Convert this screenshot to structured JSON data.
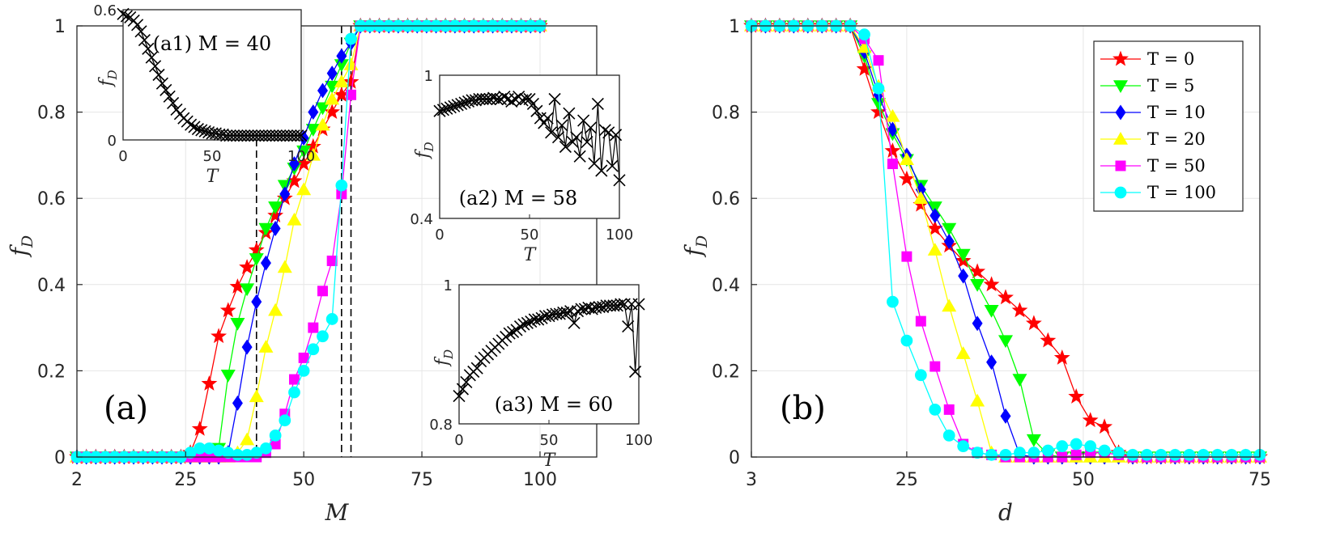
{
  "figure": {
    "panel_labels": [
      "(a)",
      "(b)"
    ],
    "legend_entries": [
      "T = 0",
      "T = 5",
      "T = 10",
      "T = 20",
      "T = 50",
      "T = 100"
    ]
  },
  "chart_data": [
    {
      "id": "a",
      "type": "line",
      "xlabel": "M",
      "ylabel": "f",
      "ylabel_sub": "D",
      "xlim": [
        2,
        112
      ],
      "ylim": [
        0,
        1
      ],
      "xticks": [
        2,
        25,
        50,
        75,
        100
      ],
      "yticks": [
        0,
        0.2,
        0.4,
        0.6,
        0.8,
        1
      ],
      "grid": true,
      "vlines": [
        40,
        58,
        60
      ],
      "x": [
        2,
        4,
        6,
        8,
        10,
        12,
        14,
        16,
        18,
        20,
        22,
        24,
        26,
        28,
        30,
        32,
        34,
        36,
        38,
        40,
        42,
        44,
        46,
        48,
        50,
        52,
        54,
        56,
        58,
        60,
        62,
        64,
        66,
        68,
        70,
        72,
        74,
        76,
        78,
        80,
        82,
        84,
        86,
        88,
        90,
        92,
        94,
        96,
        98,
        100
      ],
      "series": [
        {
          "name": "T = 0",
          "color": "#ff0000",
          "marker": "star",
          "values": [
            0,
            0,
            0,
            0,
            0,
            0,
            0,
            0,
            0,
            0,
            0,
            0,
            0.01,
            0.065,
            0.17,
            0.28,
            0.34,
            0.395,
            0.44,
            0.48,
            0.52,
            0.56,
            0.6,
            0.64,
            0.68,
            0.72,
            0.76,
            0.8,
            0.84,
            0.87,
            1,
            1,
            1,
            1,
            1,
            1,
            1,
            1,
            1,
            1,
            1,
            1,
            1,
            1,
            1,
            1,
            1,
            1,
            1,
            1
          ]
        },
        {
          "name": "T = 5",
          "color": "#00ff00",
          "marker": "triangle-down",
          "values": [
            0,
            0,
            0,
            0,
            0,
            0,
            0,
            0,
            0,
            0,
            0,
            0,
            0,
            0,
            0,
            0.02,
            0.19,
            0.31,
            0.39,
            0.46,
            0.53,
            0.58,
            0.63,
            0.67,
            0.71,
            0.76,
            0.81,
            0.86,
            0.91,
            0.96,
            1,
            1,
            1,
            1,
            1,
            1,
            1,
            1,
            1,
            1,
            1,
            1,
            1,
            1,
            1,
            1,
            1,
            1,
            1,
            1
          ]
        },
        {
          "name": "T = 10",
          "color": "#0000ff",
          "marker": "diamond",
          "values": [
            0,
            0,
            0,
            0,
            0,
            0,
            0,
            0,
            0,
            0,
            0,
            0,
            0,
            0,
            0,
            0,
            0.01,
            0.125,
            0.255,
            0.36,
            0.45,
            0.53,
            0.61,
            0.68,
            0.74,
            0.8,
            0.85,
            0.89,
            0.93,
            0.96,
            1,
            1,
            1,
            1,
            1,
            1,
            1,
            1,
            1,
            1,
            1,
            1,
            1,
            1,
            1,
            1,
            1,
            1,
            1,
            1
          ]
        },
        {
          "name": "T = 20",
          "color": "#ffff00",
          "marker": "triangle-up",
          "values": [
            0,
            0,
            0,
            0,
            0,
            0,
            0,
            0,
            0,
            0,
            0,
            0,
            0,
            0,
            0,
            0,
            0,
            0.01,
            0.04,
            0.14,
            0.255,
            0.34,
            0.44,
            0.55,
            0.62,
            0.7,
            0.77,
            0.83,
            0.87,
            0.91,
            1,
            1,
            1,
            1,
            1,
            1,
            1,
            1,
            1,
            1,
            1,
            1,
            1,
            1,
            1,
            1,
            1,
            1,
            1,
            1
          ]
        },
        {
          "name": "T = 50",
          "color": "#ff00ff",
          "marker": "square",
          "values": [
            0,
            0,
            0,
            0,
            0,
            0,
            0,
            0,
            0,
            0,
            0,
            0,
            0,
            0,
            0,
            0,
            0,
            0,
            0,
            0,
            0.01,
            0.03,
            0.1,
            0.18,
            0.23,
            0.3,
            0.385,
            0.455,
            0.61,
            0.84,
            1,
            1,
            1,
            1,
            1,
            1,
            1,
            1,
            1,
            1,
            1,
            1,
            1,
            1,
            1,
            1,
            1,
            1,
            1,
            1
          ]
        },
        {
          "name": "T = 100",
          "color": "#00ffff",
          "marker": "circle",
          "values": [
            0,
            0,
            0,
            0,
            0,
            0,
            0,
            0,
            0,
            0,
            0,
            0,
            0.01,
            0.02,
            0.02,
            0.015,
            0.01,
            0.005,
            0.005,
            0.01,
            0.02,
            0.05,
            0.085,
            0.15,
            0.2,
            0.25,
            0.28,
            0.32,
            0.63,
            0.97,
            1,
            1,
            1,
            1,
            1,
            1,
            1,
            1,
            1,
            1,
            1,
            1,
            1,
            1,
            1,
            1,
            1,
            1,
            1,
            1
          ]
        }
      ]
    },
    {
      "id": "b",
      "type": "line",
      "xlabel": "d",
      "ylabel": "f",
      "ylabel_sub": "D",
      "xlim": [
        3,
        75
      ],
      "ylim": [
        0,
        1
      ],
      "xticks": [
        3,
        25,
        50,
        75
      ],
      "yticks": [
        0,
        0.2,
        0.4,
        0.6,
        0.8,
        1
      ],
      "grid": true,
      "legend": "top-right",
      "x": [
        3,
        5,
        7,
        9,
        11,
        13,
        15,
        17,
        19,
        21,
        23,
        25,
        27,
        29,
        31,
        33,
        35,
        37,
        39,
        41,
        43,
        45,
        47,
        49,
        51,
        53,
        55,
        57,
        59,
        61,
        63,
        65,
        67,
        69,
        71,
        73,
        75
      ],
      "series": [
        {
          "name": "T = 0",
          "color": "#ff0000",
          "marker": "star",
          "values": [
            1,
            1,
            1,
            1,
            1,
            1,
            1,
            1,
            0.9,
            0.8,
            0.71,
            0.645,
            0.585,
            0.53,
            0.49,
            0.455,
            0.43,
            0.4,
            0.37,
            0.34,
            0.31,
            0.27,
            0.23,
            0.14,
            0.085,
            0.07,
            0.01,
            0,
            0,
            0,
            0,
            0,
            0,
            0,
            0,
            0,
            0
          ]
        },
        {
          "name": "T = 5",
          "color": "#00ff00",
          "marker": "triangle-down",
          "values": [
            1,
            1,
            1,
            1,
            1,
            1,
            1,
            1,
            0.93,
            0.82,
            0.75,
            0.69,
            0.63,
            0.58,
            0.53,
            0.47,
            0.4,
            0.34,
            0.27,
            0.18,
            0.04,
            0.005,
            0,
            0,
            0,
            0,
            0,
            0,
            0,
            0,
            0,
            0,
            0,
            0,
            0,
            0,
            0
          ]
        },
        {
          "name": "T = 10",
          "color": "#0000ff",
          "marker": "diamond",
          "values": [
            1,
            1,
            1,
            1,
            1,
            1,
            1,
            1,
            0.94,
            0.84,
            0.76,
            0.7,
            0.62,
            0.56,
            0.5,
            0.42,
            0.31,
            0.22,
            0.095,
            0.005,
            0,
            0,
            0,
            0,
            0,
            0,
            0,
            0,
            0,
            0,
            0,
            0,
            0,
            0,
            0,
            0,
            0
          ]
        },
        {
          "name": "T = 20",
          "color": "#ffff00",
          "marker": "triangle-up",
          "values": [
            1,
            1,
            1,
            1,
            1,
            1,
            1,
            1,
            0.95,
            0.86,
            0.79,
            0.69,
            0.6,
            0.48,
            0.35,
            0.24,
            0.13,
            0.01,
            0,
            0,
            0,
            0,
            0,
            0,
            0,
            0,
            0,
            0,
            0,
            0,
            0,
            0,
            0,
            0,
            0,
            0,
            0
          ]
        },
        {
          "name": "T = 50",
          "color": "#ff00ff",
          "marker": "square",
          "values": [
            1,
            1,
            1,
            1,
            1,
            1,
            1,
            1,
            0.97,
            0.92,
            0.68,
            0.465,
            0.315,
            0.21,
            0.11,
            0.03,
            0.01,
            0.005,
            0,
            0,
            0,
            0,
            0,
            0.005,
            0.01,
            0.01,
            0.005,
            0,
            0,
            0,
            0,
            0,
            0,
            0,
            0,
            0,
            0
          ]
        },
        {
          "name": "T = 100",
          "color": "#00ffff",
          "marker": "circle",
          "values": [
            1,
            1,
            1,
            1,
            1,
            1,
            1,
            1,
            0.98,
            0.855,
            0.36,
            0.27,
            0.19,
            0.11,
            0.05,
            0.025,
            0.01,
            0.005,
            0.005,
            0.01,
            0.01,
            0.015,
            0.025,
            0.03,
            0.025,
            0.015,
            0.01,
            0.005,
            0.005,
            0.005,
            0.005,
            0.005,
            0.005,
            0.005,
            0.005,
            0.005,
            0.005
          ]
        }
      ]
    },
    {
      "id": "a1",
      "type": "line",
      "title": "(a1) M = 40",
      "xlabel": "T",
      "ylabel": "f",
      "ylabel_sub": "D",
      "xlim": [
        0,
        100
      ],
      "ylim": [
        0,
        0.6
      ],
      "xticks": [
        0,
        50,
        100
      ],
      "yticks": [
        0,
        0.6
      ],
      "series": [
        {
          "name": "",
          "color": "#000000",
          "marker": "x",
          "values": [
            0.58,
            0.57,
            0.565,
            0.55,
            0.53,
            0.5,
            0.46,
            0.42,
            0.38,
            0.34,
            0.3,
            0.26,
            0.23,
            0.2,
            0.17,
            0.14,
            0.12,
            0.1,
            0.085,
            0.07,
            0.06,
            0.05,
            0.045,
            0.04,
            0.035,
            0.03,
            0.03,
            0.025,
            0.025,
            0.02,
            0.02,
            0.02,
            0.02,
            0.02,
            0.02,
            0.02,
            0.02,
            0.02,
            0.02,
            0.02,
            0.02,
            0.02,
            0.02,
            0.02,
            0.02,
            0.02,
            0.02,
            0.02,
            0.02,
            0.02,
            0.02
          ]
        }
      ]
    },
    {
      "id": "a2",
      "type": "line",
      "title": "(a2) M = 58",
      "xlabel": "T",
      "ylabel": "f",
      "ylabel_sub": "D",
      "xlim": [
        0,
        100
      ],
      "ylim": [
        0.4,
        1
      ],
      "xticks": [
        0,
        50,
        100
      ],
      "yticks": [
        0.4,
        1
      ],
      "series": [
        {
          "name": "",
          "color": "#000000",
          "marker": "x",
          "values": [
            0.85,
            0.855,
            0.86,
            0.865,
            0.87,
            0.875,
            0.88,
            0.885,
            0.89,
            0.895,
            0.895,
            0.9,
            0.9,
            0.9,
            0.9,
            0.905,
            0.9,
            0.9,
            0.91,
            0.9,
            0.89,
            0.9,
            0.91,
            0.895,
            0.9,
            0.9,
            0.88,
            0.85,
            0.82,
            0.8,
            0.82,
            0.76,
            0.9,
            0.74,
            0.79,
            0.7,
            0.84,
            0.72,
            0.74,
            0.66,
            0.81,
            0.72,
            0.78,
            0.63,
            0.88,
            0.6,
            0.77,
            0.76,
            0.62,
            0.75,
            0.56
          ]
        }
      ]
    },
    {
      "id": "a3",
      "type": "line",
      "title": "(a3) M = 60",
      "xlabel": "T",
      "ylabel": "f",
      "ylabel_sub": "D",
      "xlim": [
        0,
        100
      ],
      "ylim": [
        0.8,
        1
      ],
      "xticks": [
        0,
        50,
        100
      ],
      "yticks": [
        0.8,
        1
      ],
      "series": [
        {
          "name": "",
          "color": "#000000",
          "marker": "x",
          "values": [
            0.84,
            0.85,
            0.86,
            0.87,
            0.875,
            0.88,
            0.89,
            0.895,
            0.9,
            0.905,
            0.91,
            0.915,
            0.92,
            0.925,
            0.93,
            0.932,
            0.935,
            0.94,
            0.943,
            0.945,
            0.947,
            0.95,
            0.95,
            0.952,
            0.955,
            0.955,
            0.957,
            0.958,
            0.958,
            0.96,
            0.96,
            0.962,
            0.945,
            0.962,
            0.965,
            0.965,
            0.967,
            0.965,
            0.967,
            0.968,
            0.968,
            0.97,
            0.97,
            0.97,
            0.97,
            0.972,
            0.972,
            0.94,
            0.972,
            0.875,
            0.972
          ]
        }
      ]
    }
  ]
}
